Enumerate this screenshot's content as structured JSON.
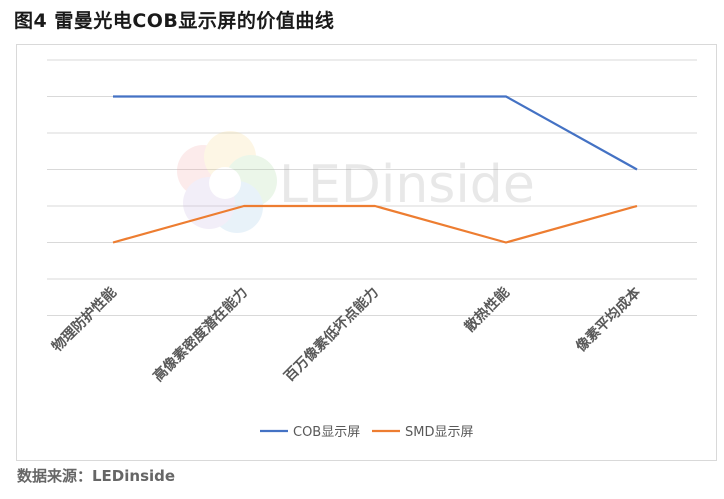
{
  "title": "图4 雷曼光电COB显示屏的价值曲线",
  "source": "数据来源：LEDinside",
  "watermark": "LEDinside",
  "chart_data": {
    "type": "line",
    "categories": [
      "物理防护性能",
      "高像素密度潜在能力",
      "百万像素低坏点能力",
      "散热性能",
      "像素平均成本"
    ],
    "series": [
      {
        "name": "COB显示屏",
        "color": "#4472c4",
        "values": [
          5,
          5,
          5,
          5,
          3
        ]
      },
      {
        "name": "SMD显示屏",
        "color": "#ed7d31",
        "values": [
          1,
          2,
          2,
          1,
          2
        ]
      }
    ],
    "ylim": [
      -1,
      6
    ],
    "grid": true,
    "legend": "bottom"
  }
}
